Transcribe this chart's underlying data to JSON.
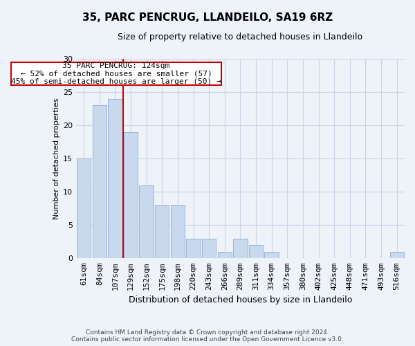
{
  "title": "35, PARC PENCRUG, LLANDEILO, SA19 6RZ",
  "subtitle": "Size of property relative to detached houses in Llandeilo",
  "xlabel": "Distribution of detached houses by size in Llandeilo",
  "ylabel": "Number of detached properties",
  "categories": [
    "61sqm",
    "84sqm",
    "107sqm",
    "129sqm",
    "152sqm",
    "175sqm",
    "198sqm",
    "220sqm",
    "243sqm",
    "266sqm",
    "289sqm",
    "311sqm",
    "334sqm",
    "357sqm",
    "380sqm",
    "402sqm",
    "425sqm",
    "448sqm",
    "471sqm",
    "493sqm",
    "516sqm"
  ],
  "values": [
    15,
    23,
    24,
    19,
    11,
    8,
    8,
    3,
    3,
    1,
    3,
    2,
    1,
    0,
    0,
    0,
    0,
    0,
    0,
    0,
    1
  ],
  "bar_color": "#c8d9ee",
  "bar_edgecolor": "#9ab5d4",
  "red_line_x": 2.5,
  "red_line_color": "#cc0000",
  "ylim": [
    0,
    30
  ],
  "yticks": [
    0,
    5,
    10,
    15,
    20,
    25,
    30
  ],
  "annotation_text": "35 PARC PENCRUG: 124sqm\n← 52% of detached houses are smaller (57)\n45% of semi-detached houses are larger (50) →",
  "annotation_box_facecolor": "#ffffff",
  "annotation_box_edgecolor": "#cc0000",
  "footer_line1": "Contains HM Land Registry data © Crown copyright and database right 2024.",
  "footer_line2": "Contains public sector information licensed under the Open Government Licence v3.0.",
  "grid_color": "#c8d4e8",
  "bg_color": "#eef2f9",
  "title_fontsize": 11,
  "subtitle_fontsize": 9,
  "ylabel_fontsize": 8,
  "xlabel_fontsize": 9,
  "tick_fontsize": 8,
  "footer_fontsize": 6.5,
  "ann_fontsize": 8
}
